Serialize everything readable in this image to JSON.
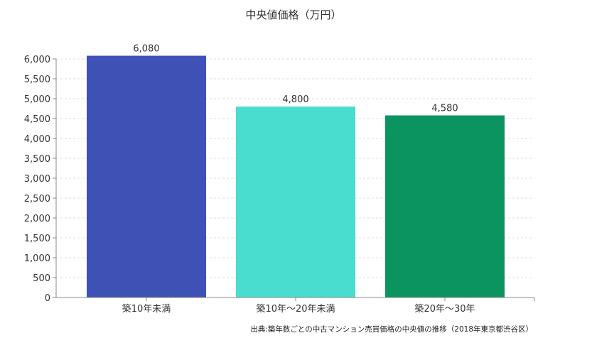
{
  "chart_data": {
    "type": "bar",
    "title": "中央値価格（万円）",
    "categories": [
      "築10年未満",
      "築10年〜20年未満",
      "築20年〜30年"
    ],
    "values": [
      6080,
      4800,
      4580
    ],
    "data_labels": [
      "6,080",
      "4,800",
      "4,580"
    ],
    "colors": [
      "#3f51b5",
      "#48ddcf",
      "#0b9460"
    ],
    "xlabel": "",
    "ylabel": "",
    "ylim": [
      0,
      6000
    ],
    "yticks": [
      0,
      500,
      1000,
      1500,
      2000,
      2500,
      3000,
      3500,
      4000,
      4500,
      5000,
      5500,
      6000
    ],
    "ytick_labels": [
      "0",
      "500",
      "1,000",
      "1,500",
      "2,000",
      "2,500",
      "3,000",
      "3,500",
      "4,000",
      "4,500",
      "5,000",
      "5,500",
      "6,000"
    ],
    "grid": true,
    "source": "出典:築年数ごとの中古マンション売買価格の中央値の推移（2018年東京都渋谷区）"
  }
}
